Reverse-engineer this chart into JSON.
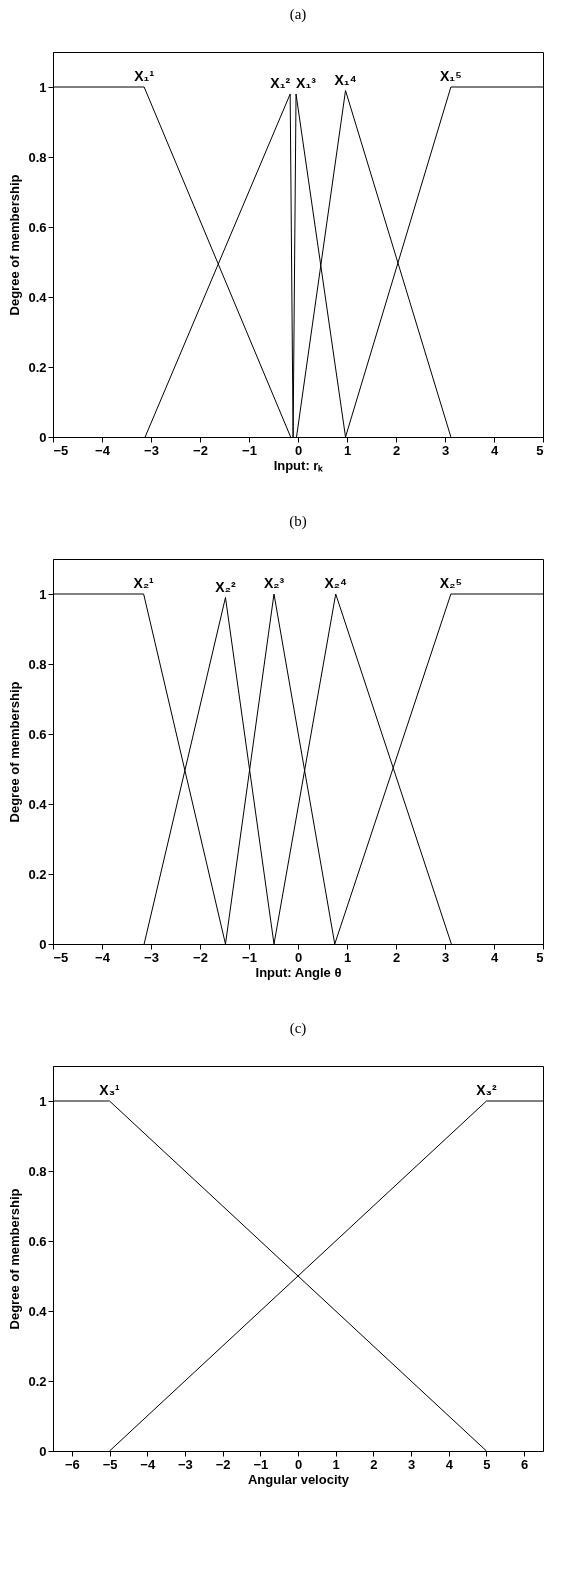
{
  "chart_data": [
    {
      "type": "line",
      "title": "(a)",
      "xlabel": "Input: rₖ",
      "ylabel": "Degree of membership",
      "xlim": [
        -5,
        5
      ],
      "xticks": [
        -5,
        -4,
        -3,
        -2,
        -1,
        0,
        1,
        2,
        3,
        4,
        5
      ],
      "ylim": [
        0,
        1.1
      ],
      "yticks": [
        0,
        0.2,
        0.4,
        0.6,
        0.8,
        1
      ],
      "series": [
        {
          "color": "#000000",
          "x": [
            -5,
            -3.14,
            -0.15
          ],
          "values": [
            1,
            1,
            0
          ]
        },
        {
          "color": "#000000",
          "x": [
            -3.12,
            -0.16,
            -0.1
          ],
          "values": [
            0,
            0.98,
            0
          ]
        },
        {
          "color": "#000000",
          "x": [
            -0.1,
            -0.04,
            0.97
          ],
          "values": [
            0,
            0.98,
            0
          ]
        },
        {
          "color": "#000000",
          "x": [
            -0.03,
            0.97,
            3.12
          ],
          "values": [
            0,
            0.99,
            0
          ]
        },
        {
          "color": "#000000",
          "x": [
            0.97,
            3.12,
            5
          ],
          "values": [
            0,
            1,
            1
          ]
        }
      ],
      "annotations": [
        "X₁¹",
        "X₁²",
        "X₁³",
        "X₁⁴",
        "X₁⁵"
      ]
    },
    {
      "type": "line",
      "title": "(b)",
      "xlabel": "Input: Angle θ",
      "ylabel": "Degree of membership",
      "xlim": [
        -5,
        5
      ],
      "xticks": [
        -5,
        -4,
        -3,
        -2,
        -1,
        0,
        1,
        2,
        3,
        4,
        5
      ],
      "ylim": [
        0,
        1.1
      ],
      "yticks": [
        0,
        0.2,
        0.4,
        0.6,
        0.8,
        1
      ],
      "series": [
        {
          "color": "#000000",
          "x": [
            -5,
            -3.15,
            -1.48
          ],
          "values": [
            1,
            1,
            0
          ]
        },
        {
          "color": "#000000",
          "x": [
            -3.14,
            -1.48,
            -0.49
          ],
          "values": [
            0,
            0.99,
            0
          ]
        },
        {
          "color": "#000000",
          "x": [
            -1.48,
            -0.49,
            0.75
          ],
          "values": [
            0,
            1,
            0
          ]
        },
        {
          "color": "#000000",
          "x": [
            -0.49,
            0.77,
            3.13
          ],
          "values": [
            0,
            1,
            0
          ]
        },
        {
          "color": "#000000",
          "x": [
            0.75,
            3.12,
            5
          ],
          "values": [
            0,
            1,
            1
          ]
        }
      ],
      "annotations": [
        "X₂¹",
        "X₂²",
        "X₂³",
        "X₂⁴",
        "X₂⁵"
      ]
    },
    {
      "type": "line",
      "title": "(c)",
      "xlabel": "Angular velocity",
      "ylabel": "Degree of membership",
      "xlim": [
        -6.5,
        6.5
      ],
      "xticks": [
        -6,
        -5,
        -4,
        -3,
        -2,
        -1,
        0,
        1,
        2,
        3,
        4,
        5,
        6
      ],
      "ylim": [
        0,
        1.1
      ],
      "yticks": [
        0,
        0.2,
        0.4,
        0.6,
        0.8,
        1
      ],
      "series": [
        {
          "color": "#000000",
          "x": [
            -6.5,
            -5,
            5
          ],
          "values": [
            1,
            1,
            0
          ]
        },
        {
          "color": "#000000",
          "x": [
            -5,
            5,
            6.5
          ],
          "values": [
            0,
            1,
            1
          ]
        }
      ],
      "annotations": [
        "X₃¹",
        "X₃²"
      ]
    }
  ]
}
